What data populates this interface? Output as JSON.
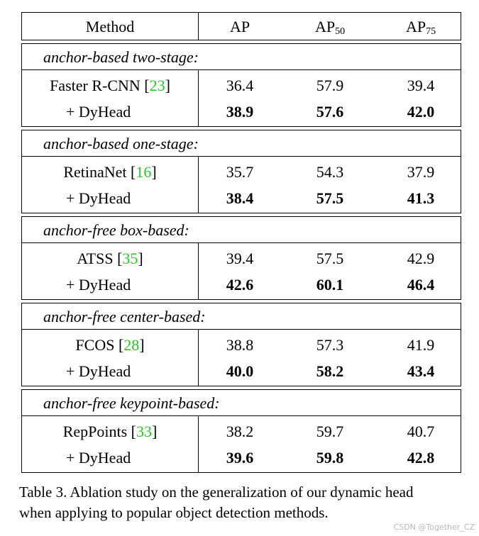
{
  "table": {
    "headers": {
      "method": "Method",
      "ap": "AP",
      "ap50_base": "AP",
      "ap50_sub": "50",
      "ap75_base": "AP",
      "ap75_sub": "75"
    },
    "groups": [
      {
        "title": "anchor-based two-stage:",
        "rows": [
          {
            "method": "Faster R-CNN [",
            "cite": "23",
            "close": "]",
            "ap": "36.4",
            "ap50": "57.9",
            "ap75": "39.4"
          },
          {
            "method": "+ DyHead",
            "ap": "38.9",
            "ap50": "57.6",
            "ap75": "42.0"
          }
        ]
      },
      {
        "title": "anchor-based one-stage:",
        "rows": [
          {
            "method": "RetinaNet [",
            "cite": "16",
            "close": "]",
            "ap": "35.7",
            "ap50": "54.3",
            "ap75": "37.9"
          },
          {
            "method": "+ DyHead",
            "ap": "38.4",
            "ap50": "57.5",
            "ap75": "41.3"
          }
        ]
      },
      {
        "title": "anchor-free box-based:",
        "rows": [
          {
            "method": "ATSS [",
            "cite": "35",
            "close": "]",
            "ap": "39.4",
            "ap50": "57.5",
            "ap75": "42.9"
          },
          {
            "method": "+ DyHead",
            "ap": "42.6",
            "ap50": "60.1",
            "ap75": "46.4"
          }
        ]
      },
      {
        "title": "anchor-free center-based:",
        "rows": [
          {
            "method": "FCOS [",
            "cite": "28",
            "close": "]",
            "ap": "38.8",
            "ap50": "57.3",
            "ap75": "41.9"
          },
          {
            "method": "+ DyHead",
            "ap": "40.0",
            "ap50": "58.2",
            "ap75": "43.4"
          }
        ]
      },
      {
        "title": "anchor-free keypoint-based:",
        "rows": [
          {
            "method": "RepPoints [",
            "cite": "33",
            "close": "]",
            "ap": "38.2",
            "ap50": "59.7",
            "ap75": "40.7"
          },
          {
            "method": "+ DyHead",
            "ap": "39.6",
            "ap50": "59.8",
            "ap75": "42.8"
          }
        ]
      }
    ]
  },
  "caption": {
    "line1": "Table 3. Ablation study on the generalization of our dynamic head",
    "line2": "when applying to popular object detection methods."
  },
  "watermark": "CSDN @Together_CZ"
}
